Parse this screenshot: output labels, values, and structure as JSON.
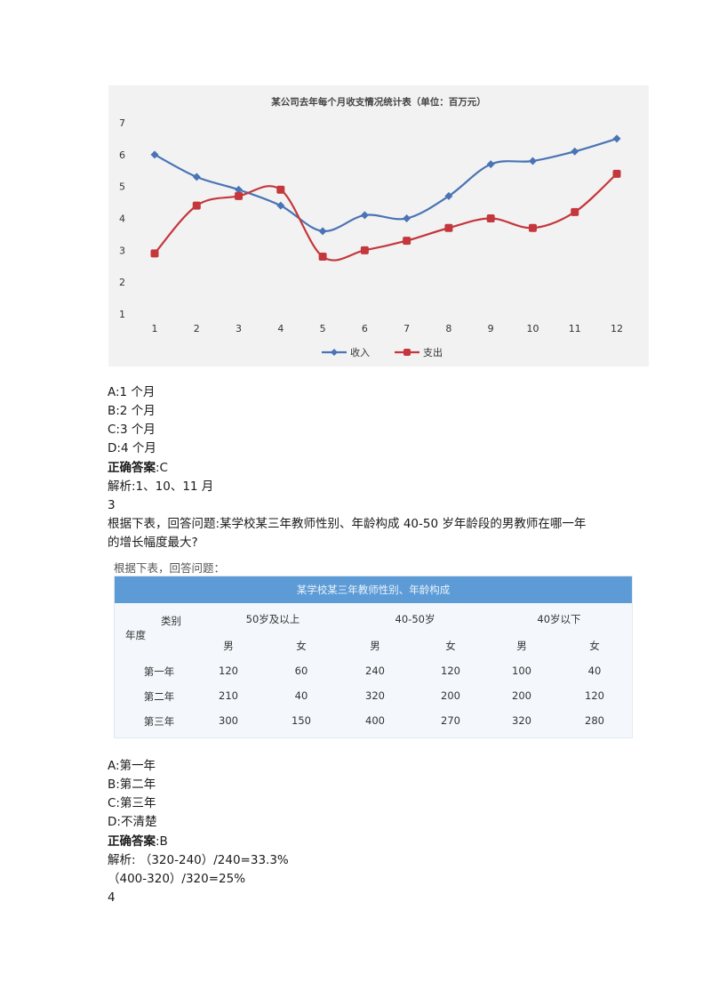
{
  "chart_data": {
    "type": "line",
    "title": "某公司去年每个月收支情况统计表（单位：百万元）",
    "x": [
      1,
      2,
      3,
      4,
      5,
      6,
      7,
      8,
      9,
      10,
      11,
      12
    ],
    "ylim": [
      1,
      7
    ],
    "yticks": [
      1,
      2,
      3,
      4,
      5,
      6,
      7
    ],
    "series": [
      {
        "name": "收入",
        "color": "#4a74b5",
        "marker": "diamond",
        "values": [
          6.0,
          5.3,
          4.9,
          4.4,
          3.6,
          4.1,
          4.0,
          4.7,
          5.7,
          5.8,
          6.1,
          6.5
        ]
      },
      {
        "name": "支出",
        "color": "#c4373c",
        "marker": "square",
        "values": [
          2.9,
          4.4,
          4.7,
          4.9,
          2.8,
          3.0,
          3.3,
          3.7,
          4.0,
          3.7,
          4.2,
          5.4
        ]
      }
    ],
    "legend_position": "bottom",
    "grid": false
  },
  "q2": {
    "options": [
      "A:1 个月",
      "B:2 个月",
      "C:3 个月",
      "D:4 个月"
    ],
    "answer_label": "正确答案",
    "answer_value": ":C",
    "explanation": "解析:1、10、11 月"
  },
  "q3": {
    "number": "3",
    "question_line1": "根据下表，回答问题:某学校某三年教师性别、年龄构成 40-50 岁年龄段的男教师在哪一年",
    "question_line2": "的增长幅度最大?",
    "table": {
      "caption": "根据下表，回答问题：",
      "title": "某学校某三年教师性别、年龄构成",
      "corner_top": "类别",
      "corner_bottom": "年度",
      "groups": [
        "50岁及以上",
        "40-50岁",
        "40岁以下"
      ],
      "genders": [
        "男",
        "女",
        "男",
        "女",
        "男",
        "女"
      ],
      "rows": [
        {
          "label": "第一年",
          "cells": [
            "120",
            "60",
            "240",
            "120",
            "100",
            "40"
          ]
        },
        {
          "label": "第二年",
          "cells": [
            "210",
            "40",
            "320",
            "200",
            "200",
            "120"
          ]
        },
        {
          "label": "第三年",
          "cells": [
            "300",
            "150",
            "400",
            "270",
            "320",
            "280"
          ]
        }
      ]
    },
    "options": [
      "A:第一年",
      "B:第二年",
      "C:第三年",
      "D:不清楚"
    ],
    "answer_label": "正确答案",
    "answer_value": ":B",
    "explanation_line1": "解析: （320-240）/240=33.3%",
    "explanation_line2": "（400-320）/320=25%"
  },
  "q4": {
    "number": "4"
  }
}
